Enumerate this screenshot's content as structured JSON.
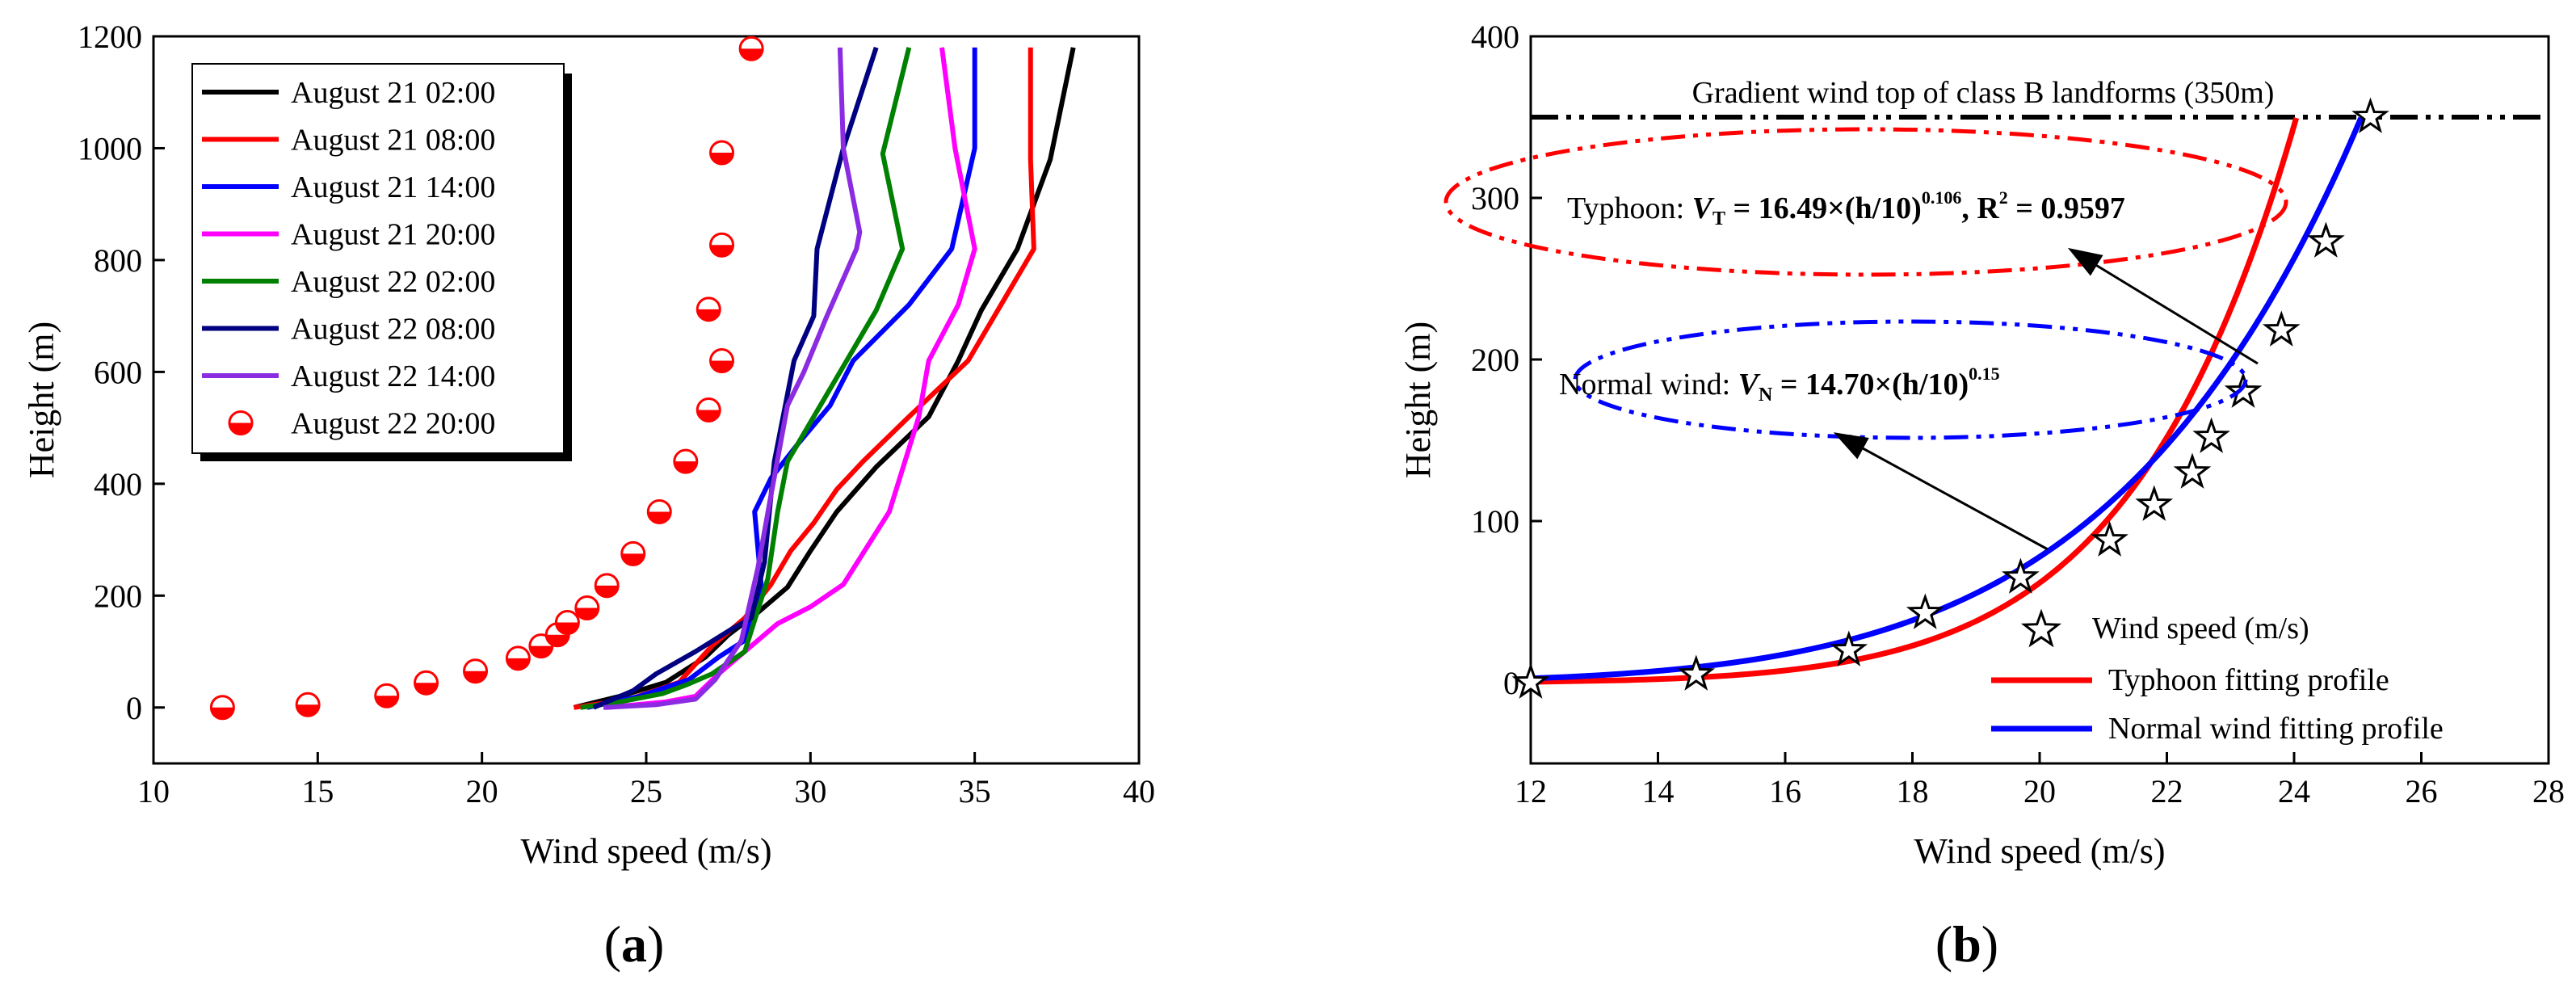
{
  "chart_data": [
    {
      "type": "line",
      "panel_label_open": "(",
      "panel_label_letter": "a",
      "panel_label_close": ")",
      "xlabel": "Wind speed (m/s)",
      "ylabel": "Height (m)",
      "xlim": [
        10,
        40
      ],
      "ylim": [
        -100,
        1200
      ],
      "xticks": [
        10,
        15,
        20,
        25,
        30,
        35,
        40
      ],
      "yticks": [
        0,
        200,
        400,
        600,
        800,
        1000,
        1200
      ],
      "legend_position": "top-left",
      "series": [
        {
          "name": "August 21 02:00",
          "color": "#000000",
          "style": "line",
          "points": [
            [
              22.8,
              0
            ],
            [
              24.2,
              20
            ],
            [
              25.6,
              45
            ],
            [
              26.8,
              90
            ],
            [
              27.5,
              130
            ],
            [
              28.4,
              170
            ],
            [
              29.3,
              215
            ],
            [
              30.0,
              280
            ],
            [
              30.8,
              350
            ],
            [
              32.0,
              430
            ],
            [
              33.6,
              520
            ],
            [
              34.5,
              620
            ],
            [
              35.2,
              710
            ],
            [
              36.3,
              820
            ],
            [
              37.3,
              980
            ],
            [
              38.0,
              1180
            ]
          ]
        },
        {
          "name": "August 21 08:00",
          "color": "#ff0000",
          "style": "line",
          "points": [
            [
              22.8,
              0
            ],
            [
              24.5,
              15
            ],
            [
              26.0,
              45
            ],
            [
              27.0,
              110
            ],
            [
              28.0,
              160
            ],
            [
              28.8,
              220
            ],
            [
              29.4,
              280
            ],
            [
              30.1,
              330
            ],
            [
              30.8,
              390
            ],
            [
              31.6,
              440
            ],
            [
              33.0,
              520
            ],
            [
              34.8,
              620
            ],
            [
              35.8,
              720
            ],
            [
              36.8,
              820
            ],
            [
              36.7,
              980
            ],
            [
              36.7,
              1180
            ]
          ]
        },
        {
          "name": "August 21 14:00",
          "color": "#0000ff",
          "style": "line",
          "points": [
            [
              23.2,
              0
            ],
            [
              24.8,
              20
            ],
            [
              26.3,
              50
            ],
            [
              27.2,
              90
            ],
            [
              28.0,
              120
            ],
            [
              28.5,
              220
            ],
            [
              28.3,
              350
            ],
            [
              28.8,
              410
            ],
            [
              29.6,
              470
            ],
            [
              30.6,
              540
            ],
            [
              31.3,
              620
            ],
            [
              33.0,
              720
            ],
            [
              34.3,
              820
            ],
            [
              35.0,
              1000
            ],
            [
              35.0,
              1180
            ]
          ]
        },
        {
          "name": "August 21 20:00",
          "color": "#ff00ff",
          "style": "line",
          "points": [
            [
              23.8,
              0
            ],
            [
              25.6,
              10
            ],
            [
              26.5,
              20
            ],
            [
              27.2,
              60
            ],
            [
              28.2,
              110
            ],
            [
              29.0,
              150
            ],
            [
              30.0,
              180
            ],
            [
              31.0,
              220
            ],
            [
              32.4,
              350
            ],
            [
              33.3,
              520
            ],
            [
              33.6,
              620
            ],
            [
              34.5,
              720
            ],
            [
              35.0,
              820
            ],
            [
              34.4,
              1000
            ],
            [
              34.0,
              1180
            ]
          ]
        },
        {
          "name": "August 22 02:00",
          "color": "#008000",
          "style": "line",
          "points": [
            [
              23.0,
              0
            ],
            [
              24.2,
              10
            ],
            [
              25.5,
              25
            ],
            [
              26.2,
              40
            ],
            [
              27.0,
              60
            ],
            [
              28.0,
              100
            ],
            [
              28.7,
              230
            ],
            [
              29.0,
              350
            ],
            [
              29.3,
              440
            ],
            [
              30.2,
              530
            ],
            [
              31.0,
              610
            ],
            [
              32.0,
              710
            ],
            [
              32.8,
              820
            ],
            [
              32.2,
              990
            ],
            [
              33.0,
              1180
            ]
          ]
        },
        {
          "name": "August 22 08:00",
          "color": "#000080",
          "style": "line",
          "points": [
            [
              23.4,
              0
            ],
            [
              24.6,
              30
            ],
            [
              25.3,
              60
            ],
            [
              26.5,
              100
            ],
            [
              27.6,
              140
            ],
            [
              28.2,
              160
            ],
            [
              28.6,
              260
            ],
            [
              28.9,
              440
            ],
            [
              29.5,
              620
            ],
            [
              30.1,
              700
            ],
            [
              30.2,
              820
            ],
            [
              31.0,
              1000
            ],
            [
              32.0,
              1180
            ]
          ]
        },
        {
          "name": "August 22 14:00",
          "color": "#8b2be2",
          "style": "line",
          "points": [
            [
              23.7,
              0
            ],
            [
              25.3,
              5
            ],
            [
              26.5,
              15
            ],
            [
              27.1,
              50
            ],
            [
              27.9,
              120
            ],
            [
              28.4,
              250
            ],
            [
              28.8,
              380
            ],
            [
              29.3,
              540
            ],
            [
              29.8,
              600
            ],
            [
              30.5,
              700
            ],
            [
              31.4,
              820
            ],
            [
              31.5,
              850
            ],
            [
              31.0,
              1000
            ],
            [
              30.9,
              1180
            ]
          ]
        },
        {
          "name": "August 22 20:00",
          "color": "#ff0000",
          "style": "marker",
          "points": [
            [
              12.1,
              0
            ],
            [
              14.7,
              5
            ],
            [
              17.1,
              21
            ],
            [
              18.3,
              44
            ],
            [
              19.8,
              65
            ],
            [
              21.1,
              88
            ],
            [
              21.8,
              110
            ],
            [
              22.3,
              130
            ],
            [
              22.6,
              152
            ],
            [
              23.2,
              178
            ],
            [
              23.8,
              218
            ],
            [
              24.6,
              275
            ],
            [
              25.4,
              350
            ],
            [
              26.2,
              440
            ],
            [
              26.9,
              532
            ],
            [
              27.3,
              620
            ],
            [
              26.9,
              712
            ],
            [
              27.3,
              827
            ],
            [
              27.3,
              992
            ],
            [
              28.2,
              1178
            ]
          ]
        }
      ]
    },
    {
      "type": "scatter",
      "panel_label_open": "(",
      "panel_label_letter": "b",
      "panel_label_close": ")",
      "xlabel": "Wind speed (m/s)",
      "ylabel": "Height (m)",
      "xlim": [
        12,
        28
      ],
      "ylim": [
        -50,
        400
      ],
      "xticks": [
        12,
        14,
        16,
        18,
        20,
        22,
        24,
        26,
        28
      ],
      "yticks": [
        0,
        100,
        200,
        300,
        400
      ],
      "reference_line": {
        "y": 350,
        "label": "Gradient wind top of class B landforms (350m)"
      },
      "scatter": {
        "name": "Wind speed (m/s)",
        "points": [
          [
            12.0,
            0
          ],
          [
            14.6,
            5
          ],
          [
            17.0,
            20
          ],
          [
            18.2,
            43
          ],
          [
            19.7,
            65
          ],
          [
            21.1,
            88
          ],
          [
            21.8,
            110
          ],
          [
            22.4,
            130
          ],
          [
            22.7,
            152
          ],
          [
            23.2,
            180
          ],
          [
            23.8,
            218
          ],
          [
            24.5,
            273
          ],
          [
            25.2,
            350
          ]
        ]
      },
      "fits": [
        {
          "name": "Typhoon fitting profile",
          "color": "#ff0000",
          "a": 16.49,
          "alpha": 0.106,
          "annotation_prefix": "Typhoon",
          "annotation_formula": "V",
          "annotation_sub": "T",
          "annotation_rest": " = 16.49×(h/10)",
          "annotation_exp": "0.106",
          "annotation_r2_lead": ",  R",
          "annotation_r2_exp": "2",
          "annotation_r2": " = 0.9597"
        },
        {
          "name": "Normal wind fitting profile",
          "color": "#0000ff",
          "a": 14.7,
          "alpha": 0.15,
          "annotation_prefix": "Normal wind",
          "annotation_formula": "V",
          "annotation_sub": "N",
          "annotation_rest": " = 14.70×(h/10)",
          "annotation_exp": "0.15"
        }
      ],
      "legend_position": "bottom-right"
    }
  ]
}
